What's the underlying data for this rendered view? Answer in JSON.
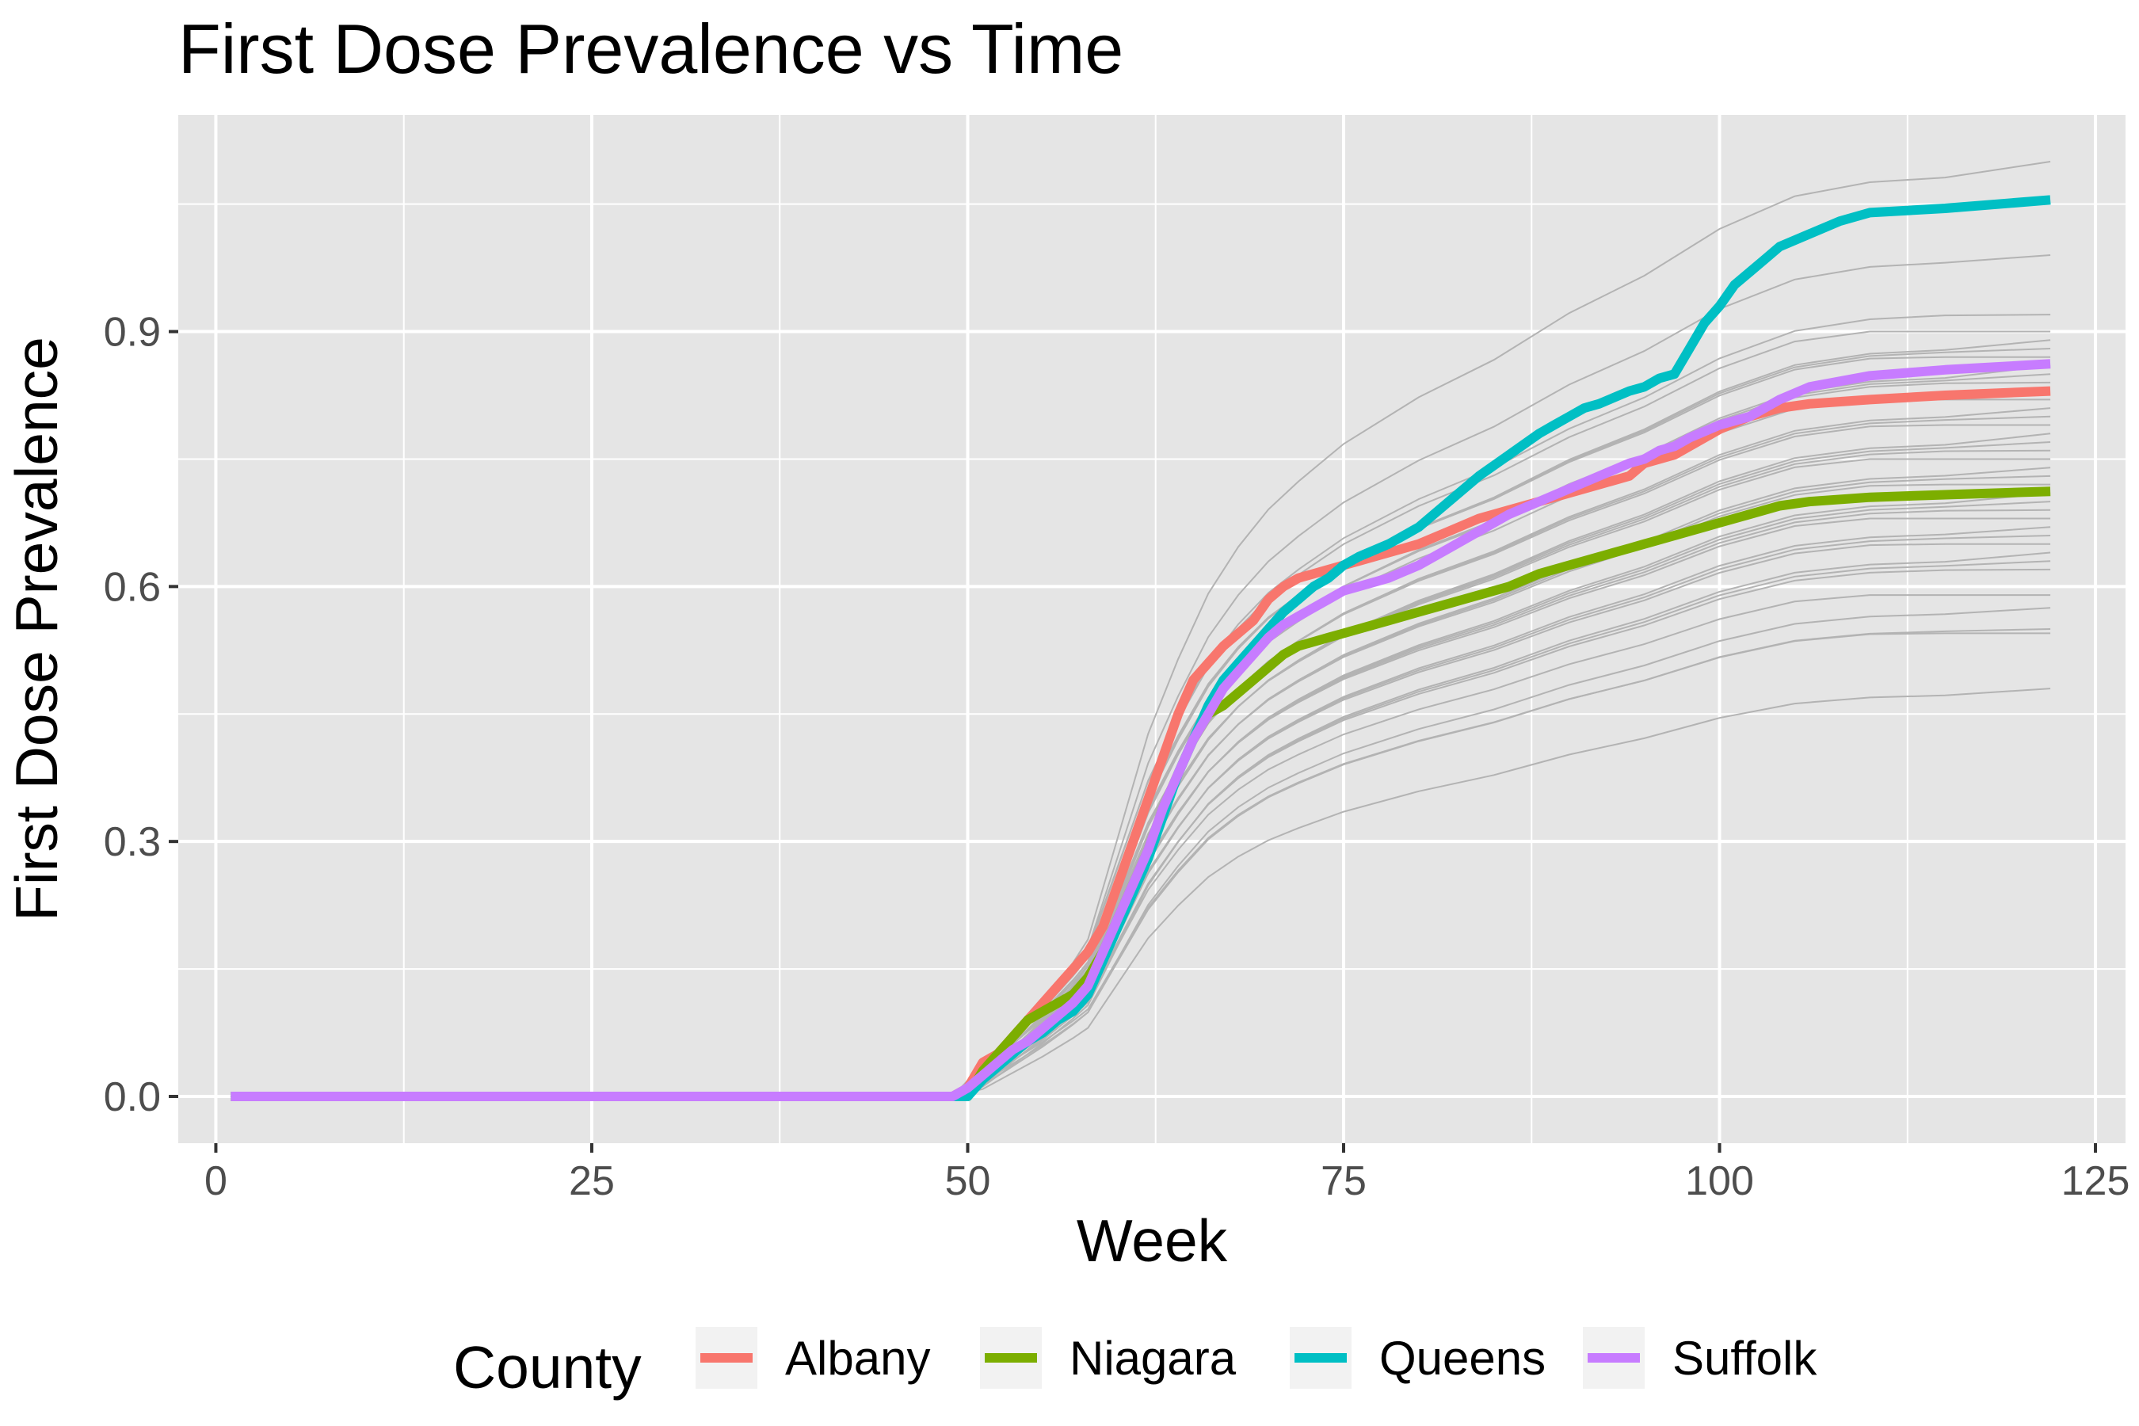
{
  "chart_data": {
    "type": "line",
    "title": "First Dose Prevalence vs Time",
    "xlabel": "Week",
    "ylabel": "First Dose Prevalence",
    "xlim": [
      -2.5,
      127
    ],
    "ylim": [
      -0.055,
      1.155
    ],
    "x_ticks": [
      0,
      25,
      50,
      75,
      100,
      125
    ],
    "x_tick_labels": [
      "0",
      "25",
      "50",
      "75",
      "100",
      "125"
    ],
    "x_minor_ticks": [
      12.5,
      37.5,
      62.5,
      87.5,
      112.5
    ],
    "y_ticks": [
      0.0,
      0.3,
      0.6,
      0.9
    ],
    "y_tick_labels": [
      "0.0",
      "0.3",
      "0.6",
      "0.9"
    ],
    "y_minor_ticks": [
      0.15,
      0.45,
      0.75,
      1.05
    ],
    "grid": true,
    "panel_color": "#e5e5e5",
    "grid_color": "#ffffff",
    "background_series_color": "#b3b3b3",
    "legend": {
      "title": "County",
      "position": "bottom"
    },
    "series": [
      {
        "name": "Albany",
        "color": "#F8766D",
        "x": [
          1,
          49,
          50,
          51,
          52,
          53,
          54,
          55,
          56,
          57,
          58,
          59,
          60,
          61,
          62,
          63,
          64,
          65,
          66,
          67,
          68,
          69,
          70,
          71,
          72,
          73,
          74,
          75,
          76,
          78,
          80,
          82,
          84,
          86,
          88,
          90,
          92,
          94,
          95,
          96,
          97,
          98,
          100,
          102,
          104,
          106,
          110,
          115,
          122
        ],
        "y": [
          0,
          0,
          0.01,
          0.04,
          0.05,
          0.07,
          0.09,
          0.11,
          0.13,
          0.15,
          0.17,
          0.2,
          0.25,
          0.3,
          0.35,
          0.4,
          0.45,
          0.49,
          0.51,
          0.53,
          0.545,
          0.56,
          0.585,
          0.6,
          0.61,
          0.615,
          0.62,
          0.625,
          0.63,
          0.64,
          0.65,
          0.665,
          0.68,
          0.69,
          0.7,
          0.71,
          0.72,
          0.73,
          0.745,
          0.75,
          0.755,
          0.765,
          0.785,
          0.8,
          0.81,
          0.815,
          0.82,
          0.825,
          0.83
        ]
      },
      {
        "name": "Niagara",
        "color": "#7CAE00",
        "x": [
          1,
          49,
          50,
          51,
          52,
          53,
          54,
          55,
          56,
          57,
          58,
          59,
          60,
          61,
          62,
          63,
          64,
          65,
          66,
          67,
          68,
          69,
          70,
          71,
          72,
          73,
          74,
          75,
          76,
          78,
          80,
          82,
          84,
          86,
          88,
          90,
          92,
          94,
          95,
          96,
          97,
          98,
          100,
          102,
          104,
          106,
          110,
          115,
          122
        ],
        "y": [
          0,
          0,
          0.0,
          0.03,
          0.05,
          0.07,
          0.09,
          0.1,
          0.11,
          0.12,
          0.14,
          0.17,
          0.21,
          0.25,
          0.29,
          0.34,
          0.38,
          0.42,
          0.45,
          0.46,
          0.475,
          0.49,
          0.505,
          0.52,
          0.53,
          0.535,
          0.54,
          0.545,
          0.55,
          0.56,
          0.57,
          0.58,
          0.59,
          0.6,
          0.615,
          0.625,
          0.635,
          0.645,
          0.65,
          0.655,
          0.66,
          0.665,
          0.675,
          0.685,
          0.695,
          0.7,
          0.705,
          0.708,
          0.712
        ]
      },
      {
        "name": "Queens",
        "color": "#00BFC4",
        "x": [
          1,
          49,
          50,
          51,
          52,
          53,
          54,
          55,
          56,
          57,
          58,
          59,
          60,
          61,
          62,
          63,
          64,
          65,
          66,
          67,
          68,
          69,
          70,
          71,
          72,
          73,
          74,
          75,
          76,
          78,
          80,
          82,
          84,
          86,
          88,
          89,
          90,
          91,
          92,
          94,
          95,
          96,
          97,
          98,
          99,
          100,
          101,
          102,
          103,
          104,
          106,
          108,
          110,
          115,
          122
        ],
        "y": [
          0,
          0,
          0.0,
          0.02,
          0.035,
          0.05,
          0.065,
          0.075,
          0.09,
          0.1,
          0.12,
          0.16,
          0.2,
          0.24,
          0.28,
          0.33,
          0.38,
          0.42,
          0.46,
          0.49,
          0.51,
          0.53,
          0.55,
          0.57,
          0.585,
          0.6,
          0.61,
          0.625,
          0.635,
          0.65,
          0.67,
          0.7,
          0.73,
          0.755,
          0.78,
          0.79,
          0.8,
          0.81,
          0.815,
          0.83,
          0.835,
          0.845,
          0.85,
          0.88,
          0.91,
          0.93,
          0.955,
          0.97,
          0.985,
          1.0,
          1.015,
          1.03,
          1.04,
          1.045,
          1.055
        ]
      },
      {
        "name": "Suffolk",
        "color": "#C77CFF",
        "x": [
          1,
          49,
          50,
          51,
          52,
          53,
          54,
          55,
          56,
          57,
          58,
          59,
          60,
          61,
          62,
          63,
          64,
          65,
          66,
          67,
          68,
          69,
          70,
          71,
          72,
          73,
          74,
          75,
          76,
          78,
          80,
          82,
          84,
          86,
          88,
          90,
          92,
          94,
          95,
          96,
          97,
          98,
          100,
          102,
          104,
          106,
          110,
          115,
          122
        ],
        "y": [
          0,
          0,
          0.01,
          0.025,
          0.04,
          0.055,
          0.065,
          0.08,
          0.095,
          0.11,
          0.13,
          0.17,
          0.21,
          0.25,
          0.29,
          0.34,
          0.38,
          0.42,
          0.45,
          0.48,
          0.5,
          0.52,
          0.54,
          0.555,
          0.565,
          0.575,
          0.585,
          0.595,
          0.6,
          0.61,
          0.625,
          0.645,
          0.665,
          0.685,
          0.7,
          0.715,
          0.73,
          0.745,
          0.75,
          0.76,
          0.765,
          0.775,
          0.79,
          0.8,
          0.82,
          0.835,
          0.848,
          0.855,
          0.862
        ]
      }
    ],
    "background_series_final_values": [
      1.1,
      0.99,
      0.92,
      0.9,
      0.89,
      0.88,
      0.87,
      0.86,
      0.85,
      0.84,
      0.82,
      0.81,
      0.8,
      0.79,
      0.78,
      0.77,
      0.76,
      0.75,
      0.74,
      0.73,
      0.72,
      0.71,
      0.7,
      0.69,
      0.68,
      0.67,
      0.66,
      0.65,
      0.64,
      0.63,
      0.62,
      0.59,
      0.575,
      0.55,
      0.545,
      0.48
    ]
  }
}
